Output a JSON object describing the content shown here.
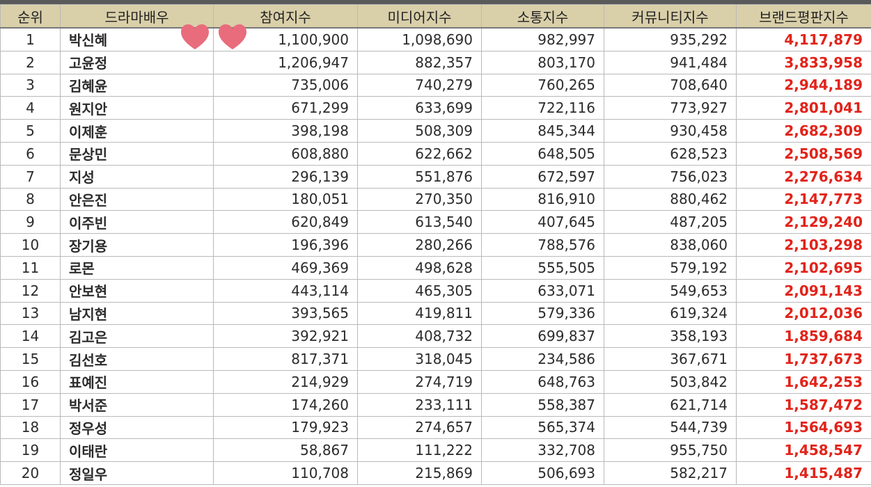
{
  "table": {
    "headers": {
      "rank": "순위",
      "name": "드라마배우",
      "participation": "참여지수",
      "media": "미디어지수",
      "communication": "소통지수",
      "community": "커뮤니티지수",
      "total": "브랜드평판지수"
    },
    "rows": [
      [
        "1",
        "박신혜",
        "1,100,900",
        "1,098,690",
        "982,997",
        "935,292",
        "4,117,879"
      ],
      [
        "2",
        "고윤정",
        "1,206,947",
        "882,357",
        "803,170",
        "941,484",
        "3,833,958"
      ],
      [
        "3",
        "김혜윤",
        "735,006",
        "740,279",
        "760,265",
        "708,640",
        "2,944,189"
      ],
      [
        "4",
        "원지안",
        "671,299",
        "633,699",
        "722,116",
        "773,927",
        "2,801,041"
      ],
      [
        "5",
        "이제훈",
        "398,198",
        "508,309",
        "845,344",
        "930,458",
        "2,682,309"
      ],
      [
        "6",
        "문상민",
        "608,880",
        "622,662",
        "648,505",
        "628,523",
        "2,508,569"
      ],
      [
        "7",
        "지성",
        "296,139",
        "551,876",
        "672,597",
        "756,023",
        "2,276,634"
      ],
      [
        "8",
        "안은진",
        "180,051",
        "270,350",
        "816,910",
        "880,462",
        "2,147,773"
      ],
      [
        "9",
        "이주빈",
        "620,849",
        "613,540",
        "407,645",
        "487,205",
        "2,129,240"
      ],
      [
        "10",
        "장기용",
        "196,396",
        "280,266",
        "788,576",
        "838,060",
        "2,103,298"
      ],
      [
        "11",
        "로몬",
        "469,369",
        "498,628",
        "555,505",
        "579,192",
        "2,102,695"
      ],
      [
        "12",
        "안보현",
        "443,114",
        "465,305",
        "633,071",
        "549,653",
        "2,091,143"
      ],
      [
        "13",
        "남지현",
        "393,565",
        "419,811",
        "579,336",
        "619,324",
        "2,012,036"
      ],
      [
        "14",
        "김고은",
        "392,921",
        "408,732",
        "699,837",
        "358,193",
        "1,859,684"
      ],
      [
        "15",
        "김선호",
        "817,371",
        "318,045",
        "234,586",
        "367,671",
        "1,737,673"
      ],
      [
        "16",
        "표예진",
        "214,929",
        "274,719",
        "648,763",
        "503,842",
        "1,642,253"
      ],
      [
        "17",
        "박서준",
        "174,260",
        "233,111",
        "558,387",
        "621,714",
        "1,587,472"
      ],
      [
        "18",
        "정우성",
        "179,923",
        "274,657",
        "565,374",
        "544,739",
        "1,564,693"
      ],
      [
        "19",
        "이태란",
        "58,867",
        "111,222",
        "332,708",
        "955,750",
        "1,458,547"
      ],
      [
        "20",
        "정일우",
        "110,708",
        "215,869",
        "506,693",
        "582,217",
        "1,415,487"
      ]
    ]
  },
  "colors": {
    "header_bg": "#d9cfa9",
    "total_text": "#e2231a",
    "body_text": "#2b2b2b",
    "heart": "#e86c7c"
  },
  "decorations": {
    "hearts": [
      "heart-icon",
      "heart-icon"
    ]
  }
}
